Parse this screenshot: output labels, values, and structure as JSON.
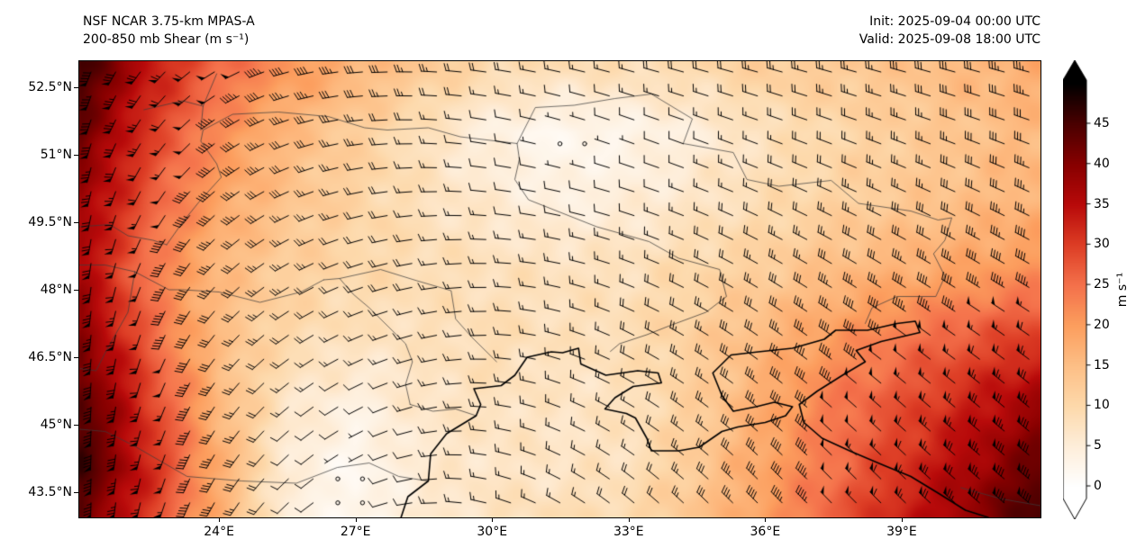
{
  "title": {
    "line1": "NSF NCAR 3.75-km MPAS-A",
    "line2": "200-850 mb Shear (m s⁻¹)"
  },
  "info": {
    "init": "Init: 2025-09-04 00:00 UTC",
    "valid": "Valid: 2025-09-08 18:00 UTC"
  },
  "axes": {
    "x_ticks": [
      {
        "label": "24°E",
        "lon": 24
      },
      {
        "label": "27°E",
        "lon": 27
      },
      {
        "label": "30°E",
        "lon": 30
      },
      {
        "label": "33°E",
        "lon": 33
      },
      {
        "label": "36°E",
        "lon": 36
      },
      {
        "label": "39°E",
        "lon": 39
      }
    ],
    "y_ticks": [
      {
        "label": "52.5°N",
        "lat": 52.5
      },
      {
        "label": "51°N",
        "lat": 51
      },
      {
        "label": "49.5°N",
        "lat": 49.5
      },
      {
        "label": "48°N",
        "lat": 48
      },
      {
        "label": "46.5°N",
        "lat": 46.5
      },
      {
        "label": "45°N",
        "lat": 45
      },
      {
        "label": "43.5°N",
        "lat": 43.5
      }
    ]
  },
  "colorbar": {
    "label": "m s⁻¹",
    "ticks": [
      0,
      5,
      10,
      15,
      20,
      25,
      30,
      35,
      40,
      45
    ],
    "extend": "both",
    "stops": [
      [
        0,
        "#ffffff"
      ],
      [
        5,
        "#feeeda"
      ],
      [
        10,
        "#fdd9ab"
      ],
      [
        15,
        "#fdbf86"
      ],
      [
        20,
        "#fc9e5e"
      ],
      [
        25,
        "#f4714b"
      ],
      [
        30,
        "#dd3d25"
      ],
      [
        35,
        "#b80a0a"
      ],
      [
        40,
        "#870000"
      ],
      [
        45,
        "#4a0000"
      ],
      [
        50,
        "#000000"
      ]
    ]
  },
  "chart_data": {
    "type": "heatmap",
    "title": "NSF NCAR 3.75-km MPAS-A 200-850 mb Shear (m s⁻¹)",
    "units": "m s⁻¹",
    "overlay": "wind barbs (half barb = 2.5, full barb = 5, pennant = 25 m s⁻¹; open circle = calm)",
    "lon_range": [
      20.93,
      42.05
    ],
    "lat_range": [
      42.94,
      53.08
    ],
    "colorbar_range_shown": [
      0,
      45
    ],
    "grid_lons": [
      21.0,
      22.5,
      24.0,
      25.5,
      27.0,
      28.5,
      30.0,
      31.5,
      33.0,
      34.5,
      36.0,
      37.5,
      39.0,
      40.5,
      42.0
    ],
    "grid_lats": [
      53.0,
      51.5,
      50.0,
      48.5,
      47.0,
      45.5,
      44.0,
      42.9
    ],
    "shear_ms": [
      [
        46,
        34,
        26,
        21,
        17,
        13,
        10,
        9,
        9,
        10,
        12,
        13,
        14,
        16,
        18
      ],
      [
        42,
        30,
        22,
        16,
        12,
        8,
        4,
        2,
        3,
        5,
        8,
        10,
        12,
        14,
        16
      ],
      [
        38,
        27,
        19,
        14,
        11,
        8,
        6,
        4,
        5,
        7,
        9,
        11,
        13,
        15,
        17
      ],
      [
        36,
        24,
        16,
        12,
        10,
        9,
        8,
        8,
        8,
        10,
        12,
        15,
        17,
        19,
        21
      ],
      [
        40,
        26,
        15,
        10,
        8,
        8,
        9,
        8,
        9,
        12,
        16,
        20,
        24,
        27,
        30
      ],
      [
        44,
        30,
        16,
        7,
        4,
        7,
        8,
        7,
        8,
        12,
        18,
        24,
        28,
        33,
        38
      ],
      [
        46,
        32,
        18,
        5,
        2,
        6,
        7,
        7,
        8,
        13,
        19,
        25,
        31,
        37,
        43
      ],
      [
        42,
        30,
        17,
        5,
        2,
        6,
        8,
        9,
        10,
        14,
        20,
        27,
        33,
        39,
        46
      ]
    ],
    "wind_from_deg": [
      [
        200,
        220,
        240,
        255,
        265,
        272,
        278,
        282,
        285,
        285,
        285,
        285,
        285,
        285,
        285
      ],
      [
        195,
        215,
        235,
        250,
        262,
        272,
        280,
        286,
        290,
        290,
        290,
        290,
        290,
        290,
        290
      ],
      [
        190,
        210,
        230,
        245,
        257,
        267,
        276,
        282,
        287,
        291,
        294,
        295,
        295,
        295,
        295
      ],
      [
        186,
        205,
        225,
        240,
        251,
        261,
        271,
        281,
        290,
        296,
        300,
        301,
        301,
        301,
        300
      ],
      [
        184,
        201,
        220,
        235,
        246,
        256,
        270,
        285,
        296,
        301,
        305,
        306,
        306,
        305,
        305
      ],
      [
        181,
        199,
        215,
        230,
        241,
        256,
        275,
        290,
        300,
        306,
        310,
        311,
        311,
        310,
        310
      ],
      [
        180,
        196,
        211,
        226,
        241,
        261,
        281,
        296,
        306,
        311,
        315,
        315,
        314,
        311,
        310
      ],
      [
        180,
        195,
        210,
        226,
        246,
        266,
        286,
        301,
        311,
        315,
        316,
        316,
        315,
        311,
        310
      ]
    ]
  },
  "map": {
    "coastlines": [
      [
        [
          28.0,
          42.94
        ],
        [
          28.15,
          43.4
        ],
        [
          28.6,
          43.75
        ],
        [
          28.65,
          44.35
        ],
        [
          29.0,
          44.8
        ],
        [
          29.65,
          45.2
        ],
        [
          29.75,
          45.45
        ],
        [
          29.6,
          45.8
        ],
        [
          30.2,
          45.87
        ],
        [
          30.5,
          46.1
        ],
        [
          30.77,
          46.5
        ],
        [
          31.3,
          46.62
        ],
        [
          31.55,
          46.6
        ],
        [
          31.9,
          46.7
        ],
        [
          31.95,
          46.35
        ],
        [
          32.5,
          46.1
        ],
        [
          33.2,
          46.2
        ],
        [
          33.65,
          46.15
        ],
        [
          33.72,
          45.93
        ],
        [
          33.1,
          45.85
        ],
        [
          32.7,
          45.6
        ],
        [
          32.48,
          45.35
        ],
        [
          32.95,
          45.25
        ],
        [
          33.15,
          45.15
        ],
        [
          33.4,
          44.7
        ],
        [
          33.5,
          44.42
        ],
        [
          34.1,
          44.42
        ],
        [
          34.55,
          44.5
        ],
        [
          35.05,
          44.85
        ],
        [
          35.4,
          44.95
        ],
        [
          36.0,
          45.05
        ],
        [
          36.45,
          45.2
        ],
        [
          36.6,
          45.4
        ],
        [
          36.2,
          45.5
        ],
        [
          35.8,
          45.4
        ],
        [
          35.3,
          45.3
        ],
        [
          35.05,
          45.65
        ],
        [
          34.85,
          46.15
        ],
        [
          35.25,
          46.55
        ],
        [
          35.85,
          46.62
        ],
        [
          36.6,
          46.7
        ],
        [
          37.3,
          46.9
        ],
        [
          37.55,
          47.1
        ],
        [
          38.25,
          47.1
        ],
        [
          38.9,
          47.25
        ],
        [
          39.3,
          47.3
        ],
        [
          39.4,
          47.05
        ],
        [
          38.55,
          46.85
        ],
        [
          38.0,
          46.65
        ],
        [
          38.2,
          46.4
        ],
        [
          37.7,
          46.1
        ],
        [
          37.15,
          45.75
        ],
        [
          36.75,
          45.45
        ],
        [
          36.85,
          45.05
        ],
        [
          37.25,
          44.7
        ],
        [
          37.9,
          44.4
        ],
        [
          38.6,
          44.1
        ],
        [
          39.2,
          43.85
        ],
        [
          39.85,
          43.45
        ],
        [
          40.4,
          43.1
        ],
        [
          40.9,
          42.94
        ]
      ]
    ],
    "borders": [
      [
        [
          22.85,
          49.0
        ],
        [
          23.2,
          49.5
        ],
        [
          23.6,
          50.0
        ],
        [
          24.05,
          50.5
        ],
        [
          23.95,
          50.8
        ],
        [
          23.6,
          51.3
        ],
        [
          23.65,
          51.55
        ],
        [
          24.3,
          51.9
        ],
        [
          25.3,
          51.95
        ],
        [
          26.4,
          51.85
        ],
        [
          27.2,
          51.6
        ],
        [
          27.7,
          51.55
        ],
        [
          28.6,
          51.6
        ],
        [
          29.3,
          51.4
        ],
        [
          30.55,
          51.25
        ],
        [
          30.95,
          52.05
        ],
        [
          31.8,
          52.1
        ],
        [
          32.7,
          52.25
        ],
        [
          33.5,
          52.35
        ],
        [
          34.4,
          51.8
        ],
        [
          34.2,
          51.25
        ],
        [
          35.3,
          51.05
        ],
        [
          35.6,
          50.45
        ],
        [
          36.3,
          50.3
        ],
        [
          37.45,
          50.43
        ],
        [
          38.05,
          49.92
        ],
        [
          39.2,
          49.75
        ],
        [
          39.8,
          49.55
        ],
        [
          40.1,
          49.6
        ],
        [
          39.95,
          49.1
        ],
        [
          39.7,
          48.8
        ],
        [
          39.95,
          48.3
        ],
        [
          39.75,
          47.85
        ],
        [
          38.9,
          47.85
        ],
        [
          38.35,
          47.6
        ],
        [
          38.2,
          47.25
        ]
      ],
      [
        [
          20.93,
          49.4
        ],
        [
          21.6,
          49.45
        ],
        [
          22.0,
          49.2
        ],
        [
          22.55,
          49.1
        ],
        [
          22.85,
          49.0
        ]
      ],
      [
        [
          22.15,
          48.4
        ],
        [
          22.9,
          48.0
        ],
        [
          23.2,
          48.0
        ],
        [
          24.0,
          47.95
        ],
        [
          24.9,
          47.72
        ],
        [
          25.8,
          47.95
        ],
        [
          26.3,
          48.22
        ]
      ],
      [
        [
          22.15,
          48.4
        ],
        [
          21.5,
          48.55
        ],
        [
          20.93,
          48.55
        ]
      ],
      [
        [
          26.3,
          48.22
        ],
        [
          26.65,
          48.25
        ],
        [
          27.55,
          48.45
        ],
        [
          28.35,
          48.2
        ],
        [
          29.1,
          47.98
        ],
        [
          29.2,
          47.35
        ],
        [
          29.55,
          46.95
        ],
        [
          30.1,
          46.4
        ]
      ],
      [
        [
          26.65,
          48.25
        ],
        [
          26.95,
          47.9
        ],
        [
          27.3,
          47.6
        ],
        [
          27.8,
          47.1
        ],
        [
          28.1,
          46.8
        ],
        [
          28.25,
          46.4
        ],
        [
          28.1,
          45.9
        ],
        [
          28.2,
          45.45
        ]
      ],
      [
        [
          20.93,
          46.25
        ],
        [
          21.3,
          46.2
        ],
        [
          21.5,
          46.6
        ],
        [
          22.0,
          47.5
        ],
        [
          22.15,
          48.4
        ]
      ],
      [
        [
          20.93,
          44.9
        ],
        [
          21.5,
          44.85
        ],
        [
          22.1,
          44.55
        ],
        [
          22.7,
          44.2
        ],
        [
          23.3,
          43.85
        ],
        [
          24.5,
          43.75
        ],
        [
          25.7,
          43.7
        ],
        [
          26.6,
          44.05
        ],
        [
          27.3,
          44.15
        ],
        [
          27.95,
          43.85
        ],
        [
          28.58,
          43.75
        ]
      ],
      [
        [
          22.35,
          52.0
        ],
        [
          23.2,
          52.2
        ],
        [
          23.65,
          52.08
        ],
        [
          23.95,
          52.8
        ]
      ],
      [
        [
          23.65,
          52.08
        ],
        [
          23.6,
          51.55
        ]
      ],
      [
        [
          40.3,
          43.6
        ],
        [
          41.2,
          43.35
        ],
        [
          42.05,
          43.2
        ]
      ]
    ],
    "rivers": [
      [
        [
          30.55,
          51.25
        ],
        [
          30.6,
          50.9
        ],
        [
          30.5,
          50.45
        ],
        [
          30.8,
          50.0
        ],
        [
          31.3,
          49.8
        ],
        [
          31.8,
          49.6
        ],
        [
          32.3,
          49.4
        ],
        [
          33.0,
          49.2
        ],
        [
          33.45,
          49.07
        ],
        [
          34.1,
          48.7
        ],
        [
          35.0,
          48.45
        ],
        [
          35.15,
          47.85
        ],
        [
          34.7,
          47.5
        ],
        [
          33.9,
          47.2
        ],
        [
          33.4,
          47.0
        ],
        [
          32.8,
          46.8
        ],
        [
          32.6,
          46.63
        ]
      ],
      [
        [
          28.2,
          45.45
        ],
        [
          28.7,
          45.3
        ],
        [
          29.2,
          45.35
        ],
        [
          29.65,
          45.2
        ]
      ]
    ]
  }
}
